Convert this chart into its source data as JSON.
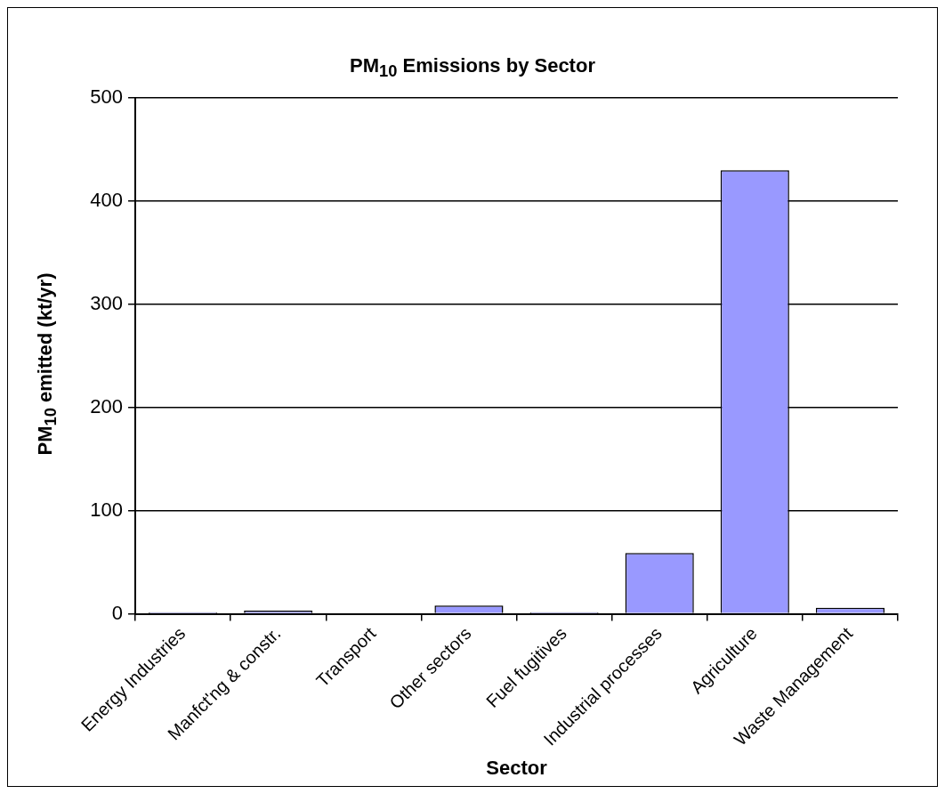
{
  "chart_data": {
    "type": "bar",
    "title": "PM$_{10}$ Emissions by Sector",
    "xlabel": "Sector",
    "ylabel": "PM$_{10}$ emitted (kt/yr)",
    "categories": [
      "Energy Industries",
      "Manfct'ng & constr.",
      "Transport",
      "Other sectors",
      "Fuel fugitives",
      "Industrial processes",
      "Agriculture",
      "Waste Management"
    ],
    "values": [
      1.5,
      3,
      0,
      8,
      1.5,
      59,
      430,
      6
    ],
    "color": "#9999ff",
    "ylim": [
      0,
      500
    ],
    "yticks": [
      0,
      100,
      200,
      300,
      400,
      500
    ],
    "grid": "y",
    "legend": false
  }
}
